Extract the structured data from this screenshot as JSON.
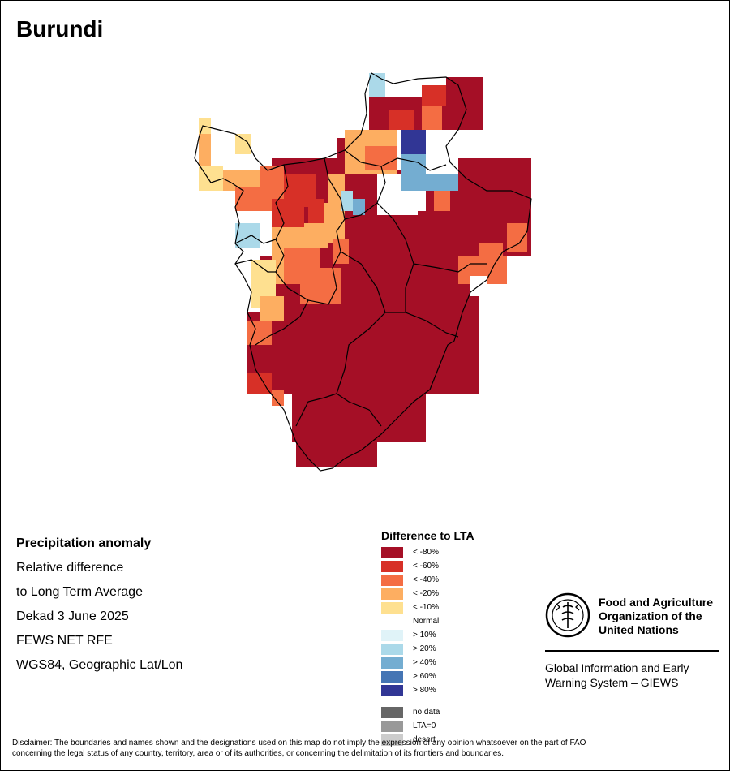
{
  "title": "Burundi",
  "info": {
    "heading": "Precipitation anomaly",
    "line1": "Relative difference",
    "line2": "to Long Term Average",
    "period": "Dekad 3 June 2025",
    "source": "FEWS NET RFE",
    "projection": "WGS84, Geographic Lat/Lon"
  },
  "legend": {
    "title": "Difference to LTA",
    "classes": [
      {
        "label": "< -80%",
        "color": "#a50f26"
      },
      {
        "label": "< -60%",
        "color": "#d73027"
      },
      {
        "label": "< -40%",
        "color": "#f46d43"
      },
      {
        "label": "< -20%",
        "color": "#fdae61"
      },
      {
        "label": "< -10%",
        "color": "#fee090"
      },
      {
        "label": "Normal",
        "color": "#ffffff"
      },
      {
        "label": "> 10%",
        "color": "#e0f3f8"
      },
      {
        "label": "> 20%",
        "color": "#abd9e9"
      },
      {
        "label": "> 40%",
        "color": "#74add1"
      },
      {
        "label": "> 60%",
        "color": "#4575b4"
      },
      {
        "label": "> 80%",
        "color": "#313695"
      }
    ],
    "extra": [
      {
        "label": "no data",
        "color": "#666666"
      },
      {
        "label": "LTA=0",
        "color": "#999999"
      },
      {
        "label": "desert",
        "color": "#cccccc"
      }
    ]
  },
  "fao": {
    "name_line1": "Food and Agriculture",
    "name_line2": "Organization of the",
    "name_line3": "United Nations",
    "system_line1": "Global Information and Early",
    "system_line2": "Warning System – GIEWS"
  },
  "disclaimer": {
    "line1": "Disclaimer: The boundaries and names shown and the designations used on this map do not imply the expression of any opinion whatsoever on the part of FAO",
    "line2": "concerning the legal status of any country, territory, area or of its authorities, or concerning the delimitation of its frontiers and boundaries."
  }
}
